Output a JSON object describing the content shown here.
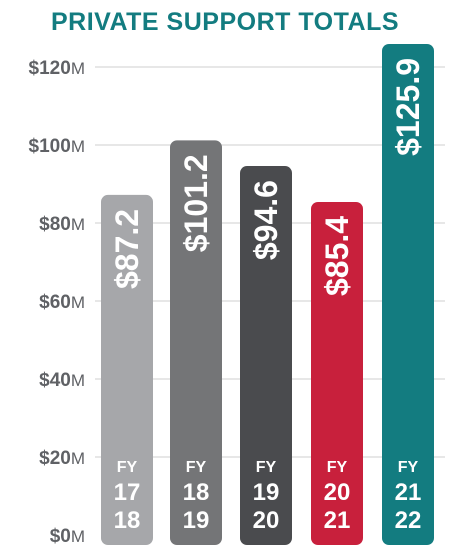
{
  "chart_data": {
    "type": "bar",
    "title": "PRIVATE SUPPORT TOTALS",
    "categories": [
      [
        "FY",
        "17",
        "18"
      ],
      [
        "FY",
        "18",
        "19"
      ],
      [
        "FY",
        "19",
        "20"
      ],
      [
        "FY",
        "20",
        "21"
      ],
      [
        "FY",
        "21",
        "22"
      ]
    ],
    "values": [
      87.2,
      101.2,
      94.6,
      85.4,
      125.9
    ],
    "value_labels": [
      "$87.2",
      "$101.2",
      "$94.6",
      "$85.4",
      "$125.9"
    ],
    "bar_colors": [
      "#a6a7aa",
      "#747577",
      "#4a4b4e",
      "#c8203c",
      "#137c80"
    ],
    "ylim": [
      0,
      120
    ],
    "yticks": [
      {
        "value": 0,
        "label": "$0",
        "unit": "M"
      },
      {
        "value": 20,
        "label": "$20",
        "unit": "M"
      },
      {
        "value": 40,
        "label": "$40",
        "unit": "M"
      },
      {
        "value": 60,
        "label": "$60",
        "unit": "M"
      },
      {
        "value": 80,
        "label": "$80",
        "unit": "M"
      },
      {
        "value": 100,
        "label": "$100",
        "unit": "M"
      },
      {
        "value": 120,
        "label": "$120",
        "unit": "M"
      }
    ],
    "grid": true
  },
  "colors": {
    "title": "#137c80",
    "axis_text": "#5f6165",
    "grid": "#cfcfcf"
  }
}
